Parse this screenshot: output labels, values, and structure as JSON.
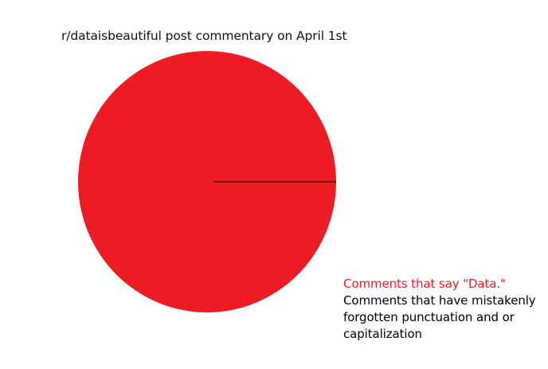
{
  "chart_data": {
    "type": "pie",
    "title": "r/dataisbeautiful post commentary on April 1st",
    "slices": [
      {
        "label": "Comments that say \"Data.\"",
        "value": 100,
        "color": "#ed1c24"
      },
      {
        "label": "Comments that have mistakenly forgotten punctuation and or capitalization",
        "value": 0,
        "color": "#000000"
      }
    ],
    "legend": "bottom-right"
  }
}
